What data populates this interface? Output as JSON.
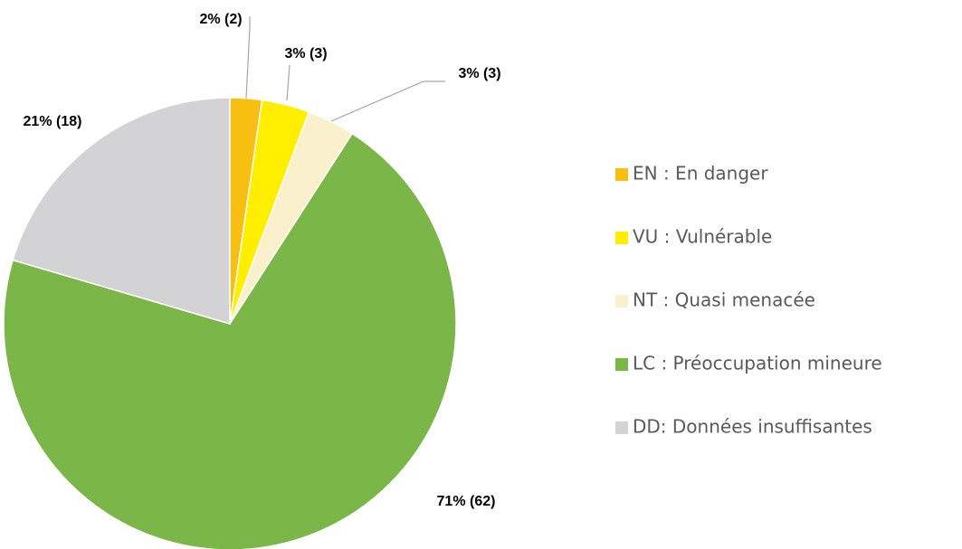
{
  "chart_data": {
    "type": "pie",
    "categories": [
      "EN : En danger",
      "VU :  Vulnérable",
      "NT : Quasi menacée",
      "LC : Préoccupation mineure",
      "DD: Données insuffisantes"
    ],
    "values": [
      2,
      3,
      3,
      62,
      18
    ],
    "value_labels": [
      "2% (2)",
      "3% (3)",
      "3% (3)",
      "71% (62)",
      "21% (18)"
    ],
    "colors": [
      "#F9BE12",
      "#FFEE00",
      "#FBF0CC",
      "#7AB648",
      "#D3D3D6"
    ],
    "legend": "right"
  }
}
